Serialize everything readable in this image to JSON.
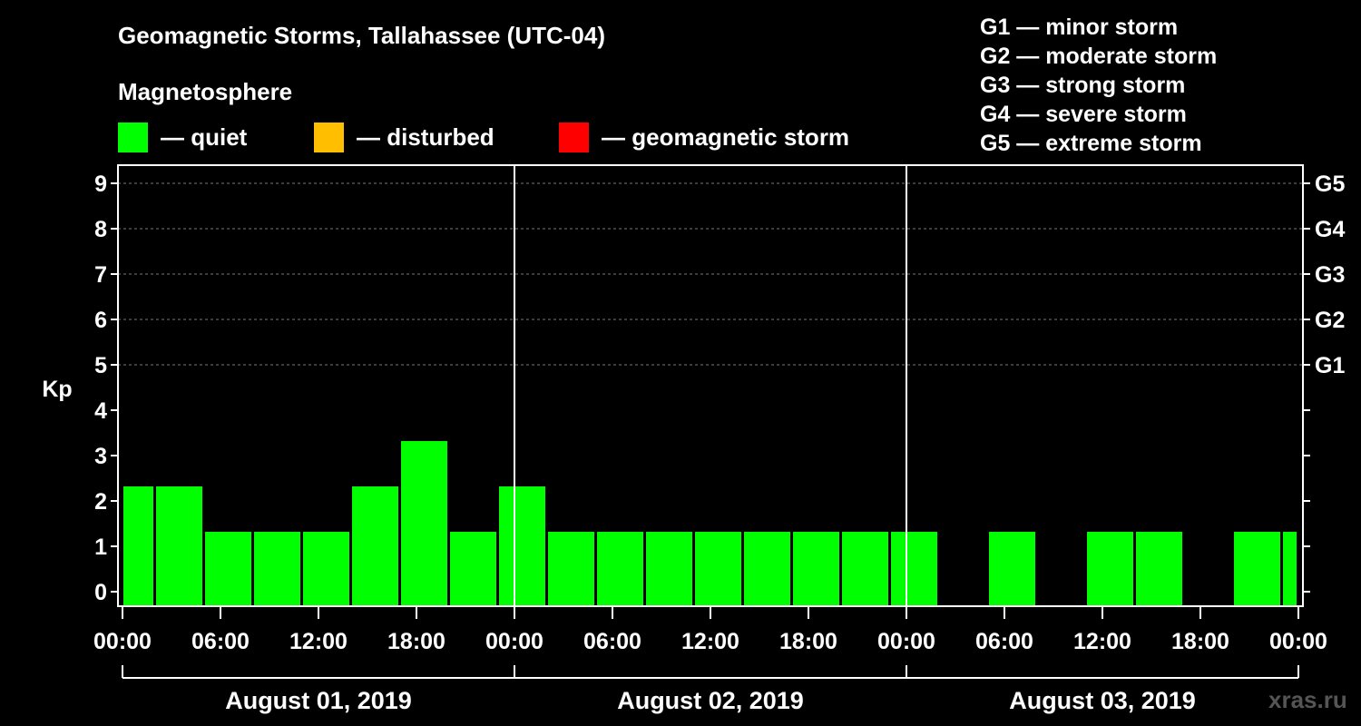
{
  "title": "Geomagnetic Storms, Tallahassee (UTC-04)",
  "subtitle": "Magnetosphere",
  "legend": [
    {
      "label": "— quiet",
      "color": "#00ff00"
    },
    {
      "label": "— disturbed",
      "color": "#ffbf00"
    },
    {
      "label": "— geomagnetic storm",
      "color": "#ff0000"
    }
  ],
  "storm_scale": [
    "G1 — minor storm",
    "G2 — moderate storm",
    "G3 — strong storm",
    "G4 — severe storm",
    "G5 — extreme storm"
  ],
  "watermark": "xras.ru",
  "chart_data": {
    "type": "bar",
    "ylabel": "Kp",
    "ylim": [
      0,
      9
    ],
    "yticks": [
      "0",
      "1",
      "2",
      "3",
      "4",
      "5",
      "6",
      "7",
      "8",
      "9"
    ],
    "right_ticks": [
      {
        "value": 5,
        "label": "G1"
      },
      {
        "value": 6,
        "label": "G2"
      },
      {
        "value": 7,
        "label": "G3"
      },
      {
        "value": 8,
        "label": "G4"
      },
      {
        "value": 9,
        "label": "G5"
      }
    ],
    "xlim_hours": [
      0,
      72
    ],
    "xticks": [
      "00:00",
      "06:00",
      "12:00",
      "18:00",
      "00:00",
      "06:00",
      "12:00",
      "18:00",
      "00:00",
      "06:00",
      "12:00",
      "18:00",
      "00:00"
    ],
    "days": [
      "August 01, 2019",
      "August 02, 2019",
      "August 03, 2019"
    ],
    "bar_color": "#00ff00",
    "bars": [
      {
        "start": 0,
        "end": 2,
        "kp": 2
      },
      {
        "start": 2,
        "end": 5,
        "kp": 2
      },
      {
        "start": 5,
        "end": 8,
        "kp": 1
      },
      {
        "start": 8,
        "end": 11,
        "kp": 1
      },
      {
        "start": 11,
        "end": 14,
        "kp": 1
      },
      {
        "start": 14,
        "end": 17,
        "kp": 2
      },
      {
        "start": 17,
        "end": 20,
        "kp": 3
      },
      {
        "start": 20,
        "end": 23,
        "kp": 1
      },
      {
        "start": 23,
        "end": 26,
        "kp": 2
      },
      {
        "start": 26,
        "end": 29,
        "kp": 1
      },
      {
        "start": 29,
        "end": 32,
        "kp": 1
      },
      {
        "start": 32,
        "end": 35,
        "kp": 1
      },
      {
        "start": 35,
        "end": 38,
        "kp": 1
      },
      {
        "start": 38,
        "end": 41,
        "kp": 1
      },
      {
        "start": 41,
        "end": 44,
        "kp": 1
      },
      {
        "start": 44,
        "end": 47,
        "kp": 1
      },
      {
        "start": 47,
        "end": 50,
        "kp": 1
      },
      {
        "start": 53,
        "end": 56,
        "kp": 1
      },
      {
        "start": 59,
        "end": 62,
        "kp": 1
      },
      {
        "start": 62,
        "end": 65,
        "kp": 1
      },
      {
        "start": 68,
        "end": 71,
        "kp": 1
      },
      {
        "start": 71,
        "end": 72,
        "kp": 1
      }
    ]
  }
}
